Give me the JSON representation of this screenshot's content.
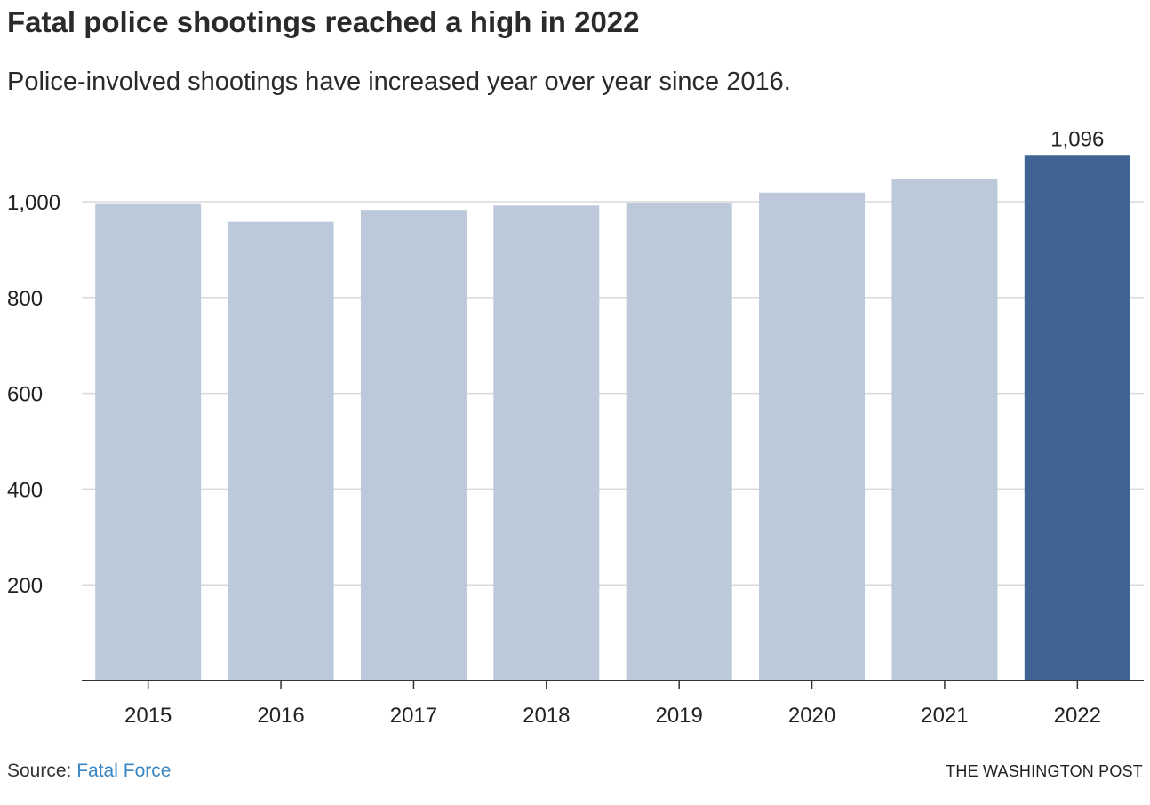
{
  "title": "Fatal police shootings reached a high in 2022",
  "subtitle": "Police-involved shootings have increased year over year since 2016.",
  "source": {
    "prefix": "Source: ",
    "link_text": "Fatal Force"
  },
  "credit": "THE WASHINGTON POST",
  "colors": {
    "bar": "#bcc9da",
    "highlight": "#3f6494",
    "grid": "#d9d9d9",
    "axis": "#333333",
    "text": "#222222"
  },
  "chart_data": {
    "type": "bar",
    "categories": [
      "2015",
      "2016",
      "2017",
      "2018",
      "2019",
      "2020",
      "2021",
      "2022"
    ],
    "values": [
      995,
      958,
      983,
      992,
      997,
      1019,
      1048,
      1096
    ],
    "highlight_index": 7,
    "data_labels": [
      {
        "index": 7,
        "text": "1,096"
      }
    ],
    "yticks": [
      {
        "value": 200,
        "label": "200"
      },
      {
        "value": 400,
        "label": "400"
      },
      {
        "value": 600,
        "label": "600"
      },
      {
        "value": 800,
        "label": "800"
      },
      {
        "value": 1000,
        "label": "1,000"
      }
    ],
    "ylim": [
      0,
      1100
    ],
    "grid": true,
    "legend": "none"
  }
}
